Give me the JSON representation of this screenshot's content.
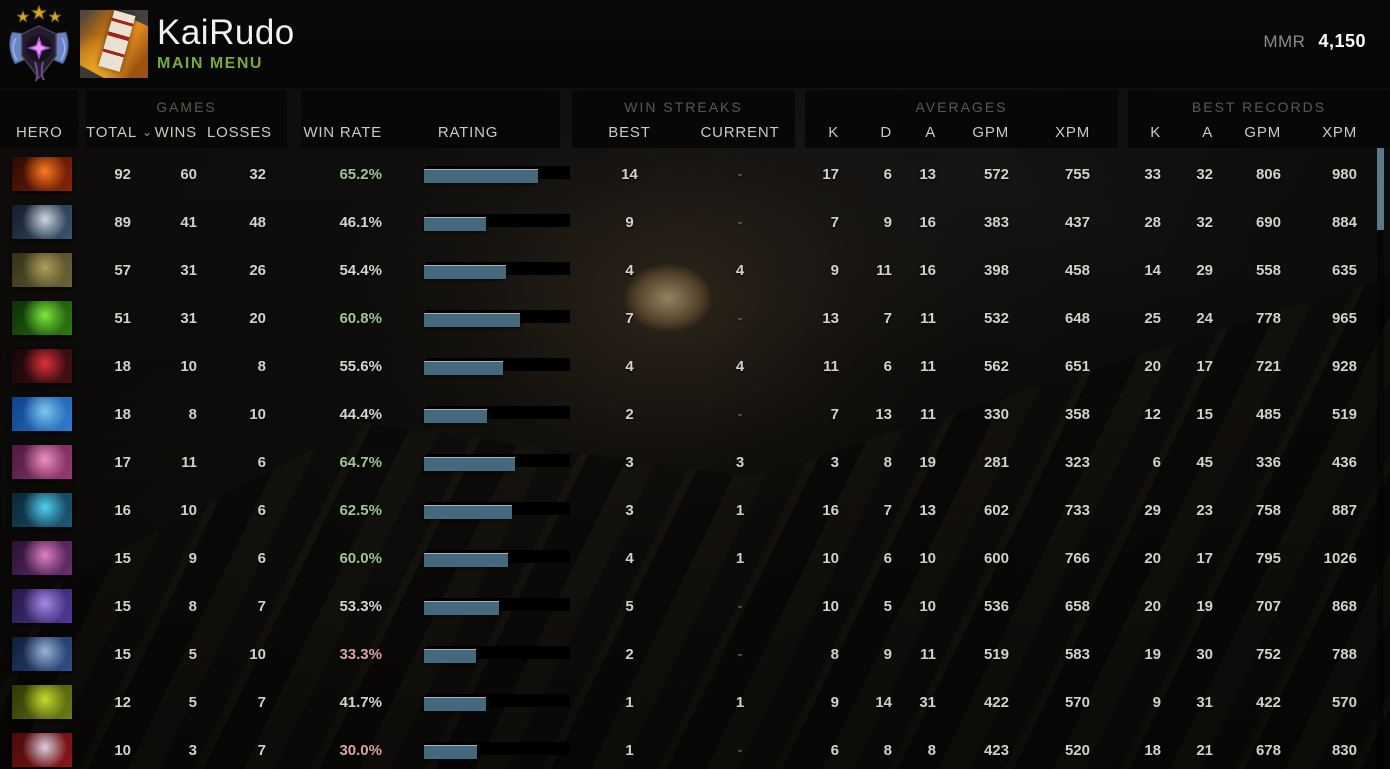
{
  "topbar": {
    "player_name": "KaiRudo",
    "status": "MAIN MENU",
    "mmr_label": "MMR",
    "mmr_value": "4,150"
  },
  "thead": {
    "hero": "HERO",
    "games_group": "GAMES",
    "total": "TOTAL",
    "sort_indicator": "⌄",
    "wins": "WINS",
    "losses": "LOSSES",
    "win_rate": "WIN RATE",
    "rating": "RATING",
    "win_streaks_group": "WIN STREAKS",
    "best": "BEST",
    "current": "CURRENT",
    "averages_group": "AVERAGES",
    "avg_k": "K",
    "avg_d": "D",
    "avg_a": "A",
    "avg_gpm": "GPM",
    "avg_xpm": "XPM",
    "best_records_group": "BEST RECORDS",
    "rec_k": "K",
    "rec_a": "A",
    "rec_gpm": "GPM",
    "rec_xpm": "XPM"
  },
  "colors": {
    "win_rate_positive": "#9fc695",
    "win_rate_neutral": "#d5d4cf",
    "win_rate_negative": "#d9a5a2",
    "rating_bar_fill": "#44697d",
    "rating_bar_bg": "#000000",
    "status_green": "#74ac3a",
    "scrollbar_thumb": "#5d7a88"
  },
  "rows": [
    {
      "hero_icon": "ember-spirit-icon",
      "icon_colors": [
        "#2a0a04",
        "#8a2408",
        "#ff7a1e"
      ],
      "total": "92",
      "wins": "60",
      "losses": "32",
      "win_rate": "65.2%",
      "win_rate_tone": "positive",
      "rating_pct": 79,
      "streak_best": "14",
      "streak_current": "-",
      "avg_k": "17",
      "avg_d": "6",
      "avg_a": "13",
      "avg_gpm": "572",
      "avg_xpm": "755",
      "rec_k": "33",
      "rec_a": "32",
      "rec_gpm": "806",
      "rec_xpm": "980"
    },
    {
      "hero_icon": "mirana-icon",
      "icon_colors": [
        "#131c2c",
        "#3c5570",
        "#cfd8de"
      ],
      "total": "89",
      "wins": "41",
      "losses": "48",
      "win_rate": "46.1%",
      "win_rate_tone": "neutral",
      "rating_pct": 43,
      "streak_best": "9",
      "streak_current": "-",
      "avg_k": "7",
      "avg_d": "9",
      "avg_a": "16",
      "avg_gpm": "383",
      "avg_xpm": "437",
      "rec_k": "28",
      "rec_a": "32",
      "rec_gpm": "690",
      "rec_xpm": "884"
    },
    {
      "hero_icon": "pudge-icon",
      "icon_colors": [
        "#33301a",
        "#6f6535",
        "#b0a05c"
      ],
      "total": "57",
      "wins": "31",
      "losses": "26",
      "win_rate": "54.4%",
      "win_rate_tone": "neutral",
      "rating_pct": 57,
      "streak_best": "4",
      "streak_current": "4",
      "avg_k": "9",
      "avg_d": "11",
      "avg_a": "16",
      "avg_gpm": "398",
      "avg_xpm": "458",
      "rec_k": "14",
      "rec_a": "29",
      "rec_gpm": "558",
      "rec_xpm": "635"
    },
    {
      "hero_icon": "rubick-icon",
      "icon_colors": [
        "#0c2e08",
        "#2e7a14",
        "#7ce83c"
      ],
      "total": "51",
      "wins": "31",
      "losses": "20",
      "win_rate": "60.8%",
      "win_rate_tone": "positive",
      "rating_pct": 67,
      "streak_best": "7",
      "streak_current": "-",
      "avg_k": "13",
      "avg_d": "7",
      "avg_a": "11",
      "avg_gpm": "532",
      "avg_xpm": "648",
      "rec_k": "25",
      "rec_a": "24",
      "rec_gpm": "778",
      "rec_xpm": "965"
    },
    {
      "hero_icon": "shadow-fiend-icon",
      "icon_colors": [
        "#16060a",
        "#461016",
        "#e03038"
      ],
      "total": "18",
      "wins": "10",
      "losses": "8",
      "win_rate": "55.6%",
      "win_rate_tone": "neutral",
      "rating_pct": 55,
      "streak_best": "4",
      "streak_current": "4",
      "avg_k": "11",
      "avg_d": "6",
      "avg_a": "11",
      "avg_gpm": "562",
      "avg_xpm": "651",
      "rec_k": "20",
      "rec_a": "17",
      "rec_gpm": "721",
      "rec_xpm": "928"
    },
    {
      "hero_icon": "puck-icon",
      "icon_colors": [
        "#0e3f8a",
        "#2f7fd0",
        "#7ec8f0"
      ],
      "total": "18",
      "wins": "8",
      "losses": "10",
      "win_rate": "44.4%",
      "win_rate_tone": "neutral",
      "rating_pct": 44,
      "streak_best": "2",
      "streak_current": "-",
      "avg_k": "7",
      "avg_d": "13",
      "avg_a": "11",
      "avg_gpm": "330",
      "avg_xpm": "358",
      "rec_k": "12",
      "rec_a": "15",
      "rec_gpm": "485",
      "rec_xpm": "519"
    },
    {
      "hero_icon": "dazzle-icon",
      "icon_colors": [
        "#4a1a3c",
        "#9a3c74",
        "#f090c0"
      ],
      "total": "17",
      "wins": "11",
      "losses": "6",
      "win_rate": "64.7%",
      "win_rate_tone": "positive",
      "rating_pct": 63,
      "streak_best": "3",
      "streak_current": "3",
      "avg_k": "3",
      "avg_d": "8",
      "avg_a": "19",
      "avg_gpm": "281",
      "avg_xpm": "323",
      "rec_k": "6",
      "rec_a": "45",
      "rec_gpm": "336",
      "rec_xpm": "436"
    },
    {
      "hero_icon": "storm-spirit-icon",
      "icon_colors": [
        "#0a2636",
        "#1c5a78",
        "#52d0f0"
      ],
      "total": "16",
      "wins": "10",
      "losses": "6",
      "win_rate": "62.5%",
      "win_rate_tone": "positive",
      "rating_pct": 61,
      "streak_best": "3",
      "streak_current": "1",
      "avg_k": "16",
      "avg_d": "7",
      "avg_a": "13",
      "avg_gpm": "602",
      "avg_xpm": "733",
      "rec_k": "29",
      "rec_a": "23",
      "rec_gpm": "758",
      "rec_xpm": "887"
    },
    {
      "hero_icon": "templar-assassin-icon",
      "icon_colors": [
        "#2a1232",
        "#6a2e74",
        "#e080c0"
      ],
      "total": "15",
      "wins": "9",
      "losses": "6",
      "win_rate": "60.0%",
      "win_rate_tone": "positive",
      "rating_pct": 58,
      "streak_best": "4",
      "streak_current": "1",
      "avg_k": "10",
      "avg_d": "6",
      "avg_a": "10",
      "avg_gpm": "600",
      "avg_xpm": "766",
      "rec_k": "20",
      "rec_a": "17",
      "rec_gpm": "795",
      "rec_xpm": "1026"
    },
    {
      "hero_icon": "void-spirit-icon",
      "icon_colors": [
        "#241844",
        "#51399a",
        "#a88ae8"
      ],
      "total": "15",
      "wins": "8",
      "losses": "7",
      "win_rate": "53.3%",
      "win_rate_tone": "neutral",
      "rating_pct": 52,
      "streak_best": "5",
      "streak_current": "-",
      "avg_k": "10",
      "avg_d": "5",
      "avg_a": "10",
      "avg_gpm": "536",
      "avg_xpm": "658",
      "rec_k": "20",
      "rec_a": "19",
      "rec_gpm": "707",
      "rec_xpm": "868"
    },
    {
      "hero_icon": "sven-icon",
      "icon_colors": [
        "#101c38",
        "#31538c",
        "#9ab4d8"
      ],
      "total": "15",
      "wins": "5",
      "losses": "10",
      "win_rate": "33.3%",
      "win_rate_tone": "negative",
      "rating_pct": 36,
      "streak_best": "2",
      "streak_current": "-",
      "avg_k": "8",
      "avg_d": "9",
      "avg_a": "11",
      "avg_gpm": "519",
      "avg_xpm": "583",
      "rec_k": "19",
      "rec_a": "30",
      "rec_gpm": "752",
      "rec_xpm": "788"
    },
    {
      "hero_icon": "venomancer-icon",
      "icon_colors": [
        "#2c3606",
        "#6d7e12",
        "#c8da30"
      ],
      "total": "12",
      "wins": "5",
      "losses": "7",
      "win_rate": "41.7%",
      "win_rate_tone": "neutral",
      "rating_pct": 43,
      "streak_best": "1",
      "streak_current": "1",
      "avg_k": "9",
      "avg_d": "14",
      "avg_a": "31",
      "avg_gpm": "422",
      "avg_xpm": "570",
      "rec_k": "9",
      "rec_a": "31",
      "rec_gpm": "422",
      "rec_xpm": "570"
    },
    {
      "hero_icon": "queen-of-pain-icon",
      "icon_colors": [
        "#4a0a0a",
        "#8c1616",
        "#d8d0e0"
      ],
      "total": "10",
      "wins": "3",
      "losses": "7",
      "win_rate": "30.0%",
      "win_rate_tone": "negative",
      "rating_pct": 37,
      "streak_best": "1",
      "streak_current": "-",
      "avg_k": "6",
      "avg_d": "8",
      "avg_a": "8",
      "avg_gpm": "423",
      "avg_xpm": "520",
      "rec_k": "18",
      "rec_a": "21",
      "rec_gpm": "678",
      "rec_xpm": "830"
    }
  ]
}
